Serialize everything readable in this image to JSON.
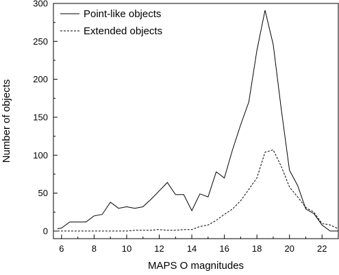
{
  "chart_data": {
    "type": "line",
    "title": "",
    "xlabel": "MAPS O magnitudes",
    "ylabel": "Number of objects",
    "xlim": [
      5.5,
      23
    ],
    "ylim": [
      -10,
      300
    ],
    "xticks": [
      6,
      8,
      10,
      12,
      14,
      16,
      18,
      20,
      22
    ],
    "yticks": [
      0,
      50,
      100,
      150,
      200,
      250,
      300
    ],
    "legend_position": "top-left",
    "grid": false,
    "series": [
      {
        "name": "Point-like objects",
        "line_style": "solid",
        "color": "#000000",
        "points": [
          [
            5.75,
            3
          ],
          [
            6.0,
            4
          ],
          [
            6.5,
            12
          ],
          [
            7.0,
            12
          ],
          [
            7.5,
            12
          ],
          [
            8.0,
            20
          ],
          [
            8.5,
            22
          ],
          [
            9.0,
            38
          ],
          [
            9.5,
            30
          ],
          [
            10.0,
            32
          ],
          [
            10.5,
            30
          ],
          [
            11.0,
            32
          ],
          [
            11.5,
            42
          ],
          [
            12.0,
            53
          ],
          [
            12.5,
            64
          ],
          [
            13.0,
            48
          ],
          [
            13.5,
            48
          ],
          [
            14.0,
            27
          ],
          [
            14.5,
            49
          ],
          [
            15.0,
            45
          ],
          [
            15.5,
            78
          ],
          [
            16.0,
            70
          ],
          [
            16.5,
            107
          ],
          [
            17.0,
            140
          ],
          [
            17.5,
            170
          ],
          [
            18.0,
            238
          ],
          [
            18.5,
            291
          ],
          [
            19.0,
            246
          ],
          [
            19.5,
            160
          ],
          [
            20.0,
            80
          ],
          [
            20.5,
            60
          ],
          [
            21.0,
            29
          ],
          [
            21.5,
            23
          ],
          [
            22.0,
            8
          ],
          [
            22.5,
            0
          ],
          [
            23.0,
            0
          ]
        ]
      },
      {
        "name": "Extended objects",
        "line_style": "dashed",
        "color": "#000000",
        "points": [
          [
            5.75,
            0
          ],
          [
            6.0,
            0
          ],
          [
            6.5,
            0
          ],
          [
            7.0,
            0
          ],
          [
            7.5,
            0
          ],
          [
            8.0,
            0
          ],
          [
            8.5,
            0
          ],
          [
            9.0,
            0
          ],
          [
            9.5,
            0
          ],
          [
            10.0,
            0
          ],
          [
            10.5,
            1
          ],
          [
            11.0,
            1
          ],
          [
            11.5,
            1
          ],
          [
            12.0,
            2
          ],
          [
            12.5,
            1
          ],
          [
            13.0,
            1
          ],
          [
            13.5,
            2
          ],
          [
            14.0,
            2
          ],
          [
            14.5,
            6
          ],
          [
            15.0,
            8
          ],
          [
            15.5,
            14
          ],
          [
            16.0,
            22
          ],
          [
            16.5,
            29
          ],
          [
            17.0,
            40
          ],
          [
            17.5,
            55
          ],
          [
            18.0,
            70
          ],
          [
            18.5,
            104
          ],
          [
            19.0,
            107
          ],
          [
            19.5,
            85
          ],
          [
            20.0,
            58
          ],
          [
            20.5,
            45
          ],
          [
            21.0,
            31
          ],
          [
            21.5,
            25
          ],
          [
            22.0,
            10
          ],
          [
            22.5,
            8
          ],
          [
            23.0,
            3
          ]
        ]
      }
    ]
  }
}
